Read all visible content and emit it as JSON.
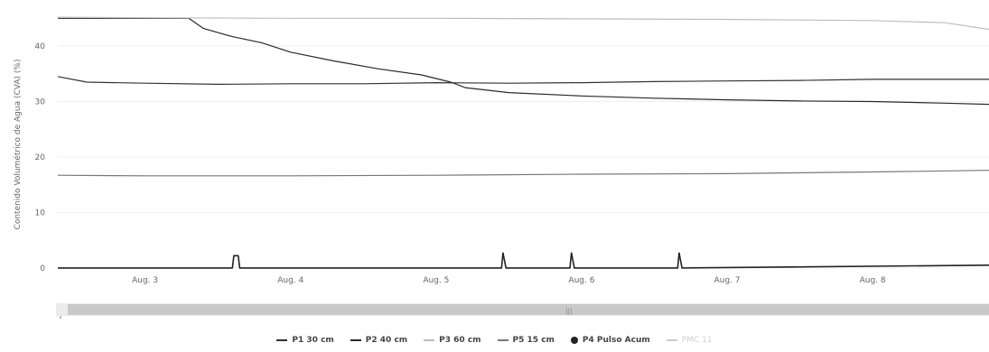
{
  "chart_data": {
    "type": "line",
    "ylabel": "Contenido Volumétrico de Agua (CVA) (%)",
    "yticks": [
      0,
      10,
      20,
      30,
      40
    ],
    "ylim": [
      -1,
      47
    ],
    "xlim": [
      2.4,
      8.8
    ],
    "xtick_labels": [
      {
        "x": 3,
        "label": "Aug. 3"
      },
      {
        "x": 4,
        "label": "Aug. 4"
      },
      {
        "x": 5,
        "label": "Aug. 5"
      },
      {
        "x": 6,
        "label": "Aug. 6"
      },
      {
        "x": 7,
        "label": "Aug. 7"
      },
      {
        "x": 8,
        "label": "Aug. 8"
      }
    ],
    "series": [
      {
        "name": "P1 30 cm",
        "color": "#333333",
        "points": [
          [
            2.4,
            34.5
          ],
          [
            2.6,
            33.5
          ],
          [
            3.0,
            33.3
          ],
          [
            3.5,
            33.1
          ],
          [
            4.0,
            33.2
          ],
          [
            4.5,
            33.2
          ],
          [
            5.0,
            33.4
          ],
          [
            5.5,
            33.3
          ],
          [
            6.0,
            33.4
          ],
          [
            6.5,
            33.6
          ],
          [
            7.0,
            33.7
          ],
          [
            7.5,
            33.8
          ],
          [
            8.0,
            34.0
          ],
          [
            8.5,
            34.0
          ],
          [
            8.8,
            34.0
          ]
        ]
      },
      {
        "name": "P2 40 cm",
        "color": "#2a2a2a",
        "points": [
          [
            2.4,
            45.0
          ],
          [
            3.0,
            45.0
          ],
          [
            3.3,
            45.0
          ],
          [
            3.4,
            43.2
          ],
          [
            3.6,
            41.7
          ],
          [
            3.8,
            40.6
          ],
          [
            4.0,
            38.9
          ],
          [
            4.3,
            37.3
          ],
          [
            4.6,
            35.9
          ],
          [
            4.9,
            34.8
          ],
          [
            5.1,
            33.5
          ],
          [
            5.2,
            32.5
          ],
          [
            5.5,
            31.6
          ],
          [
            6.0,
            31.0
          ],
          [
            6.5,
            30.6
          ],
          [
            7.0,
            30.3
          ],
          [
            7.5,
            30.1
          ],
          [
            8.0,
            30.0
          ],
          [
            8.5,
            29.7
          ],
          [
            8.8,
            29.5
          ]
        ]
      },
      {
        "name": "P3 60 cm",
        "color": "#bdbdbd",
        "points": [
          [
            2.4,
            45.2
          ],
          [
            3.0,
            45.1
          ],
          [
            4.0,
            45.0
          ],
          [
            5.0,
            45.0
          ],
          [
            6.0,
            44.9
          ],
          [
            7.0,
            44.8
          ],
          [
            8.0,
            44.6
          ],
          [
            8.5,
            44.2
          ],
          [
            8.8,
            43.0
          ]
        ]
      },
      {
        "name": "P5 15 cm",
        "color": "#777777",
        "points": [
          [
            2.4,
            16.7
          ],
          [
            3.0,
            16.6
          ],
          [
            4.0,
            16.6
          ],
          [
            5.0,
            16.7
          ],
          [
            6.0,
            16.9
          ],
          [
            7.0,
            17.0
          ],
          [
            8.0,
            17.3
          ],
          [
            8.8,
            17.6
          ]
        ]
      },
      {
        "name": "P4 Pulso Acum",
        "color": "#222222",
        "points": [
          [
            2.4,
            0
          ],
          [
            3.6,
            0
          ],
          [
            3.61,
            2.2
          ],
          [
            3.64,
            2.2
          ],
          [
            3.65,
            0
          ],
          [
            5.45,
            0
          ],
          [
            5.46,
            2.7
          ],
          [
            5.48,
            0
          ],
          [
            5.92,
            0
          ],
          [
            5.93,
            2.7
          ],
          [
            5.95,
            0
          ],
          [
            6.66,
            0
          ],
          [
            6.67,
            2.7
          ],
          [
            6.69,
            0
          ],
          [
            8.8,
            0.5
          ]
        ]
      },
      {
        "name": "PMC 11",
        "color": "#cccccc",
        "points": []
      }
    ]
  },
  "legend": [
    {
      "label": "P1 30 cm",
      "marker": "line",
      "color": "#333333"
    },
    {
      "label": "P2 40 cm",
      "marker": "line",
      "color": "#2a2a2a"
    },
    {
      "label": "P3 60 cm",
      "marker": "line",
      "color": "#bdbdbd"
    },
    {
      "label": "P5 15 cm",
      "marker": "line",
      "color": "#777777"
    },
    {
      "label": "P4 Pulso Acum",
      "marker": "dot",
      "color": "#222222"
    },
    {
      "label": "PMC 11",
      "marker": "line",
      "color": "#cccccc",
      "faded": true
    }
  ],
  "scrollbar": {
    "left_arrow": "‹",
    "thumb_grip": "|||"
  }
}
